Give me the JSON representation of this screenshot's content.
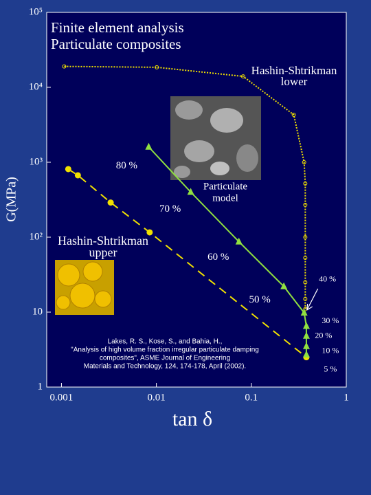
{
  "chart_data": {
    "type": "scatter",
    "title": [
      "Finite element analysis",
      "Particulate composites"
    ],
    "x_label": "tan δ",
    "y_label": "G(MPa)",
    "log_x": true,
    "log_y": true,
    "xlim": [
      0.0007,
      1
    ],
    "ylim": [
      1,
      100000
    ],
    "xticks": [
      0.001,
      0.01,
      0.1,
      1
    ],
    "yticks": [
      1,
      10,
      {
        "value": 100,
        "label": "10²"
      },
      {
        "value": 1000,
        "label": "10³"
      },
      {
        "value": 10000,
        "label": "10⁴"
      },
      {
        "value": 100000,
        "label": "10⁵"
      }
    ],
    "series": [
      {
        "color": "#f0e000",
        "line": "dotted",
        "marker": "open-circle",
        "x": [
          0.00107,
          0.0101,
          0.082,
          0.28,
          0.36,
          0.37,
          0.37,
          0.37,
          0.37,
          0.37,
          0.37,
          0.37
        ],
        "values": [
          19000,
          18500,
          14000,
          4300,
          1000,
          520,
          270,
          100,
          53,
          25,
          15,
          11
        ]
      },
      {
        "color": "#f0e000",
        "line": "dashed",
        "marker": "circle",
        "x": [
          0.00118,
          0.00149,
          0.0033,
          0.0085,
          0.38
        ],
        "values": [
          810,
          670,
          290,
          116,
          2.5
        ]
      },
      {
        "color": "#90e040",
        "line": "solid",
        "marker": "triangle",
        "x": [
          0.0083,
          0.023,
          0.074,
          0.22,
          0.36,
          0.38,
          0.38,
          0.38,
          0.38
        ],
        "values": [
          1600,
          400,
          87,
          22,
          9.8,
          6.5,
          4.8,
          3.5,
          2.7
        ],
        "point_labels": [
          "80 %",
          "70 %",
          "60 %",
          "50 %",
          "40 %",
          "30 %",
          "20 %",
          "10 %",
          "5 %"
        ]
      }
    ],
    "annotations": [
      [
        "Hashin-Shtrikman",
        "lower"
      ],
      [
        "Hashin-Shtrikman",
        "upper"
      ],
      [
        "Particulate",
        "model"
      ],
      [
        "Lakes, R. S., Kose, S., and Bahia, H.,",
        "\"Analysis of high volume fraction irregular particulate damping",
        "composites\", ASME Journal of Engineering",
        "Materials and Technology, 124, 174-178, April (2002)."
      ]
    ]
  }
}
